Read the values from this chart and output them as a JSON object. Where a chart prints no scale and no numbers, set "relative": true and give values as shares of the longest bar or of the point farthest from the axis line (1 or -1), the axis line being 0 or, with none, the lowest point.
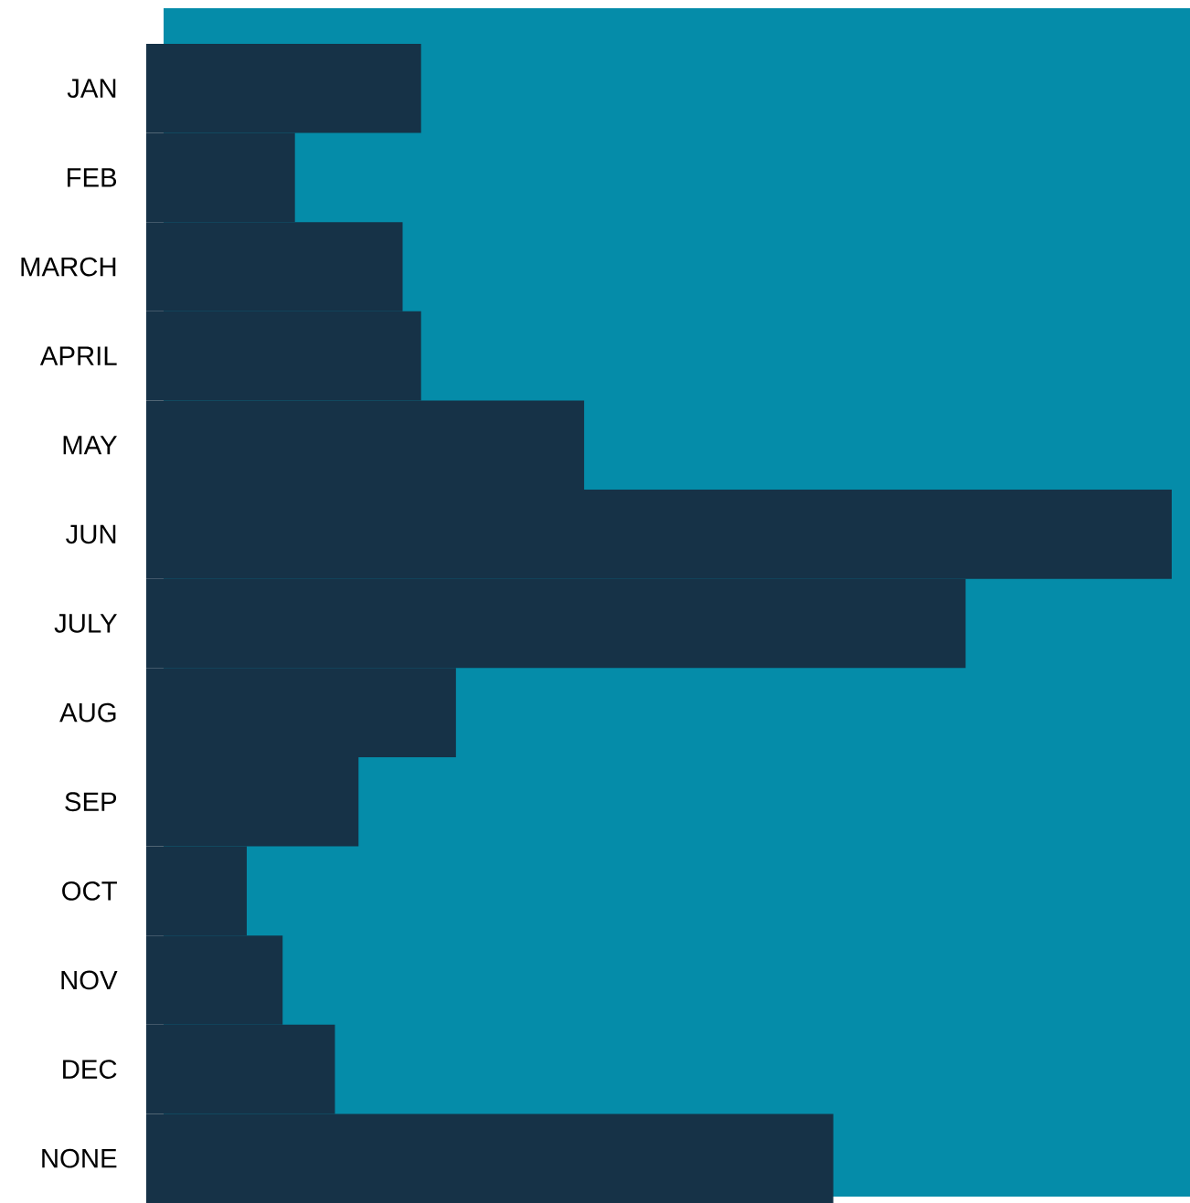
{
  "chart_data": {
    "type": "bar",
    "orientation": "horizontal",
    "relative": true,
    "categories": [
      "JAN",
      "FEB",
      "MARCH",
      "APRIL",
      "MAY",
      "JUN",
      "JULY",
      "AUG",
      "SEP",
      "OCT",
      "NOV",
      "DEC",
      "NONE"
    ],
    "values": [
      0.268,
      0.145,
      0.25,
      0.268,
      0.427,
      1.0,
      0.799,
      0.302,
      0.207,
      0.098,
      0.133,
      0.184,
      0.67
    ],
    "color": "#163247"
  }
}
